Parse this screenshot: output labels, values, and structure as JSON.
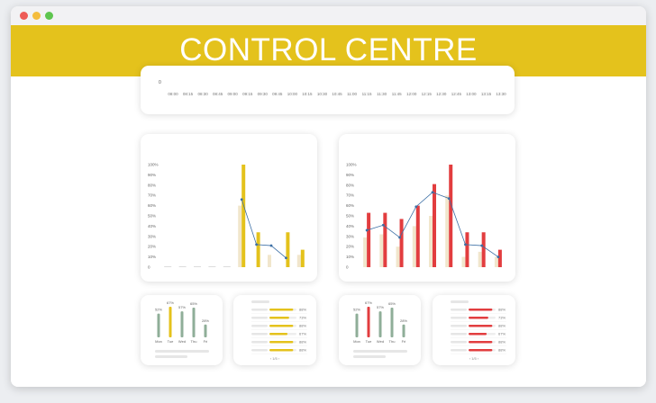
{
  "window": {
    "title": "CONTROL CENTRE"
  },
  "timeline": {
    "y_tick": "0",
    "times": [
      "08:00",
      "08:15",
      "08:30",
      "08:45",
      "09:00",
      "09:15",
      "09:30",
      "09:45",
      "10:00",
      "10:15",
      "10:30",
      "10:45",
      "11:00",
      "11:15",
      "11:30",
      "11:45",
      "12:00",
      "12:15",
      "12:30",
      "12:45",
      "13:00",
      "13:15",
      "13:30"
    ]
  },
  "colors": {
    "yellow": "#e4c21c",
    "red": "#e23d3f",
    "pale": "#f1e6cc",
    "line": "#3c6fa5",
    "green": "#8fae98"
  },
  "chart_data": [
    {
      "type": "bar",
      "y_ticks": [
        "100%",
        "90%",
        "80%",
        "70%",
        "60%",
        "50%",
        "40%",
        "30%",
        "20%",
        "10%",
        "0"
      ],
      "ylim": [
        0,
        100
      ],
      "series": [
        {
          "values": [
            0,
            0,
            0,
            0,
            0,
            60,
            0,
            12,
            0,
            12
          ]
        },
        {
          "values": [
            0,
            0,
            0,
            0,
            0,
            100,
            34,
            0,
            34,
            17
          ]
        },
        {
          "values": [
            null,
            null,
            null,
            null,
            null,
            66,
            22,
            21,
            9,
            null
          ]
        }
      ],
      "grid": false
    },
    {
      "type": "bar",
      "y_ticks": [
        "100%",
        "90%",
        "80%",
        "70%",
        "60%",
        "50%",
        "40%",
        "30%",
        "20%",
        "10%",
        "0"
      ],
      "ylim": [
        0,
        100
      ],
      "series": [
        {
          "values": [
            29,
            32,
            20,
            40,
            50,
            70,
            10,
            15,
            10
          ]
        },
        {
          "values": [
            53,
            53,
            47,
            60,
            81,
            100,
            34,
            34,
            17
          ]
        },
        {
          "values": [
            36,
            41,
            29,
            59,
            73,
            67,
            22,
            21,
            10
          ]
        }
      ],
      "grid": false
    },
    {
      "type": "bar",
      "categories": [
        "Mon",
        "Tue",
        "Wed",
        "Thu",
        "Fri"
      ],
      "values": [
        52,
        67,
        57,
        65,
        28
      ],
      "labels": [
        "52%",
        "67%",
        "57%",
        "65%",
        "28%"
      ]
    },
    {
      "type": "bar",
      "categories": [
        "Mon",
        "Tue",
        "Wed",
        "Thu",
        "Fri"
      ],
      "values": [
        52,
        67,
        57,
        65,
        28
      ],
      "labels": [
        "52%",
        "67%",
        "57%",
        "65%",
        "28%"
      ]
    }
  ],
  "progress_lists": [
    {
      "items": [
        {
          "value": 0.88,
          "label": "88%"
        },
        {
          "value": 0.73,
          "label": "73%"
        },
        {
          "value": 0.88,
          "label": "88%"
        },
        {
          "value": 0.67,
          "label": "67%"
        },
        {
          "value": 0.88,
          "label": "88%"
        },
        {
          "value": 0.88,
          "label": "88%"
        }
      ],
      "pager": "‹  1/5  ›"
    },
    {
      "items": [
        {
          "value": 0.88,
          "label": "88%"
        },
        {
          "value": 0.73,
          "label": "73%"
        },
        {
          "value": 0.88,
          "label": "88%"
        },
        {
          "value": 0.67,
          "label": "67%"
        },
        {
          "value": 0.88,
          "label": "88%"
        },
        {
          "value": 0.88,
          "label": "88%"
        }
      ],
      "pager": "‹  1/5  ›"
    }
  ]
}
